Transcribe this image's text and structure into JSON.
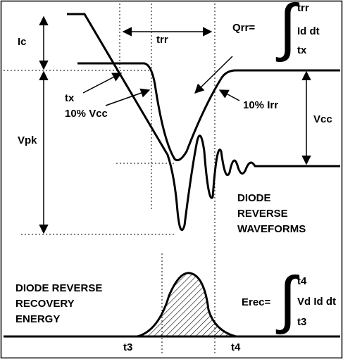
{
  "labels": {
    "ic": "Ic",
    "trr": "trr",
    "vpk": "Vpk",
    "vcc": "Vcc",
    "tx": "tx",
    "ten_vcc": "10% Vcc",
    "ten_irr": "10% Irr",
    "t3": "t3",
    "t4": "t4"
  },
  "qrr": {
    "lhs": "Qrr=",
    "upper": "trr",
    "integrand": "Id dt",
    "lower": "tx"
  },
  "erec": {
    "lhs": "Erec=",
    "upper": "t4",
    "integrand": "Vd Id dt",
    "lower": "t3"
  },
  "waveform_caption": [
    "DIODE",
    "REVERSE",
    "WAVEFORMS"
  ],
  "energy_caption": [
    "DIODE REVERSE",
    "RECOVERY",
    "ENERGY"
  ]
}
